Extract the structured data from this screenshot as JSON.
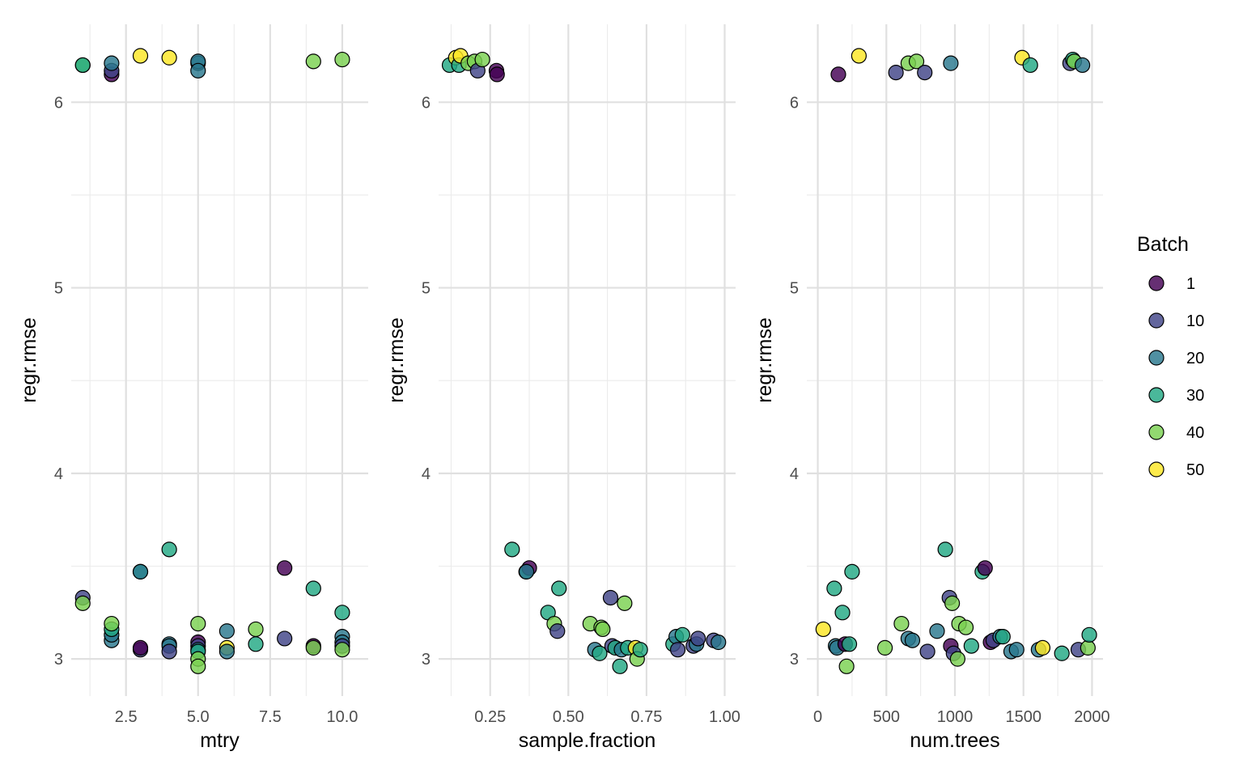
{
  "legend": {
    "title": "Batch",
    "entries": [
      {
        "label": "1",
        "color": "#440154"
      },
      {
        "label": "10",
        "color": "#414487"
      },
      {
        "label": "20",
        "color": "#2A788E"
      },
      {
        "label": "30",
        "color": "#22A884"
      },
      {
        "label": "40",
        "color": "#7AD151"
      },
      {
        "label": "50",
        "color": "#FDE725"
      }
    ]
  },
  "chart_data": [
    {
      "type": "scatter",
      "xlabel": "mtry",
      "ylabel": "regr.rmse",
      "xlim": [
        0.6,
        10.9
      ],
      "ylim": [
        2.8,
        6.42
      ],
      "xticks": [
        2.5,
        5.0,
        7.5,
        10.0
      ],
      "xtick_labels": [
        "2.5",
        "5.0",
        "7.5",
        "10.0"
      ],
      "yticks": [
        3,
        4,
        5,
        6
      ],
      "ytick_labels": [
        "3",
        "4",
        "5",
        "6"
      ],
      "grid": true,
      "points": [
        {
          "x": 1,
          "y": 6.2,
          "batch": 40
        },
        {
          "x": 1,
          "y": 6.2,
          "batch": 30
        },
        {
          "x": 2,
          "y": 6.15,
          "batch": 1
        },
        {
          "x": 2,
          "y": 6.17,
          "batch": 10
        },
        {
          "x": 2,
          "y": 6.21,
          "batch": 20
        },
        {
          "x": 3,
          "y": 6.25,
          "batch": 50
        },
        {
          "x": 4,
          "y": 6.24,
          "batch": 50
        },
        {
          "x": 5,
          "y": 6.21,
          "batch": 20
        },
        {
          "x": 5,
          "y": 6.22,
          "batch": 20
        },
        {
          "x": 5,
          "y": 6.17,
          "batch": 20
        },
        {
          "x": 9,
          "y": 6.22,
          "batch": 40
        },
        {
          "x": 10,
          "y": 6.23,
          "batch": 40
        },
        {
          "x": 1,
          "y": 3.33,
          "batch": 10
        },
        {
          "x": 1,
          "y": 3.3,
          "batch": 40
        },
        {
          "x": 2,
          "y": 3.1,
          "batch": 20
        },
        {
          "x": 2,
          "y": 3.13,
          "batch": 20
        },
        {
          "x": 2,
          "y": 3.16,
          "batch": 30
        },
        {
          "x": 2,
          "y": 3.19,
          "batch": 40
        },
        {
          "x": 3,
          "y": 3.47,
          "batch": 30
        },
        {
          "x": 3,
          "y": 3.47,
          "batch": 20
        },
        {
          "x": 3,
          "y": 3.05,
          "batch": 10
        },
        {
          "x": 3,
          "y": 3.06,
          "batch": 1
        },
        {
          "x": 4,
          "y": 3.59,
          "batch": 30
        },
        {
          "x": 4,
          "y": 3.08,
          "batch": 20
        },
        {
          "x": 4,
          "y": 3.07,
          "batch": 20
        },
        {
          "x": 4,
          "y": 3.04,
          "batch": 10
        },
        {
          "x": 5,
          "y": 3.19,
          "batch": 40
        },
        {
          "x": 5,
          "y": 3.09,
          "batch": 1
        },
        {
          "x": 5,
          "y": 3.07,
          "batch": 10
        },
        {
          "x": 5,
          "y": 3.05,
          "batch": 20
        },
        {
          "x": 5,
          "y": 3.04,
          "batch": 30
        },
        {
          "x": 5,
          "y": 3.0,
          "batch": 40
        },
        {
          "x": 5,
          "y": 2.96,
          "batch": 40
        },
        {
          "x": 6,
          "y": 3.15,
          "batch": 20
        },
        {
          "x": 6,
          "y": 3.06,
          "batch": 50
        },
        {
          "x": 6,
          "y": 3.04,
          "batch": 20
        },
        {
          "x": 7,
          "y": 3.16,
          "batch": 40
        },
        {
          "x": 7,
          "y": 3.08,
          "batch": 30
        },
        {
          "x": 8,
          "y": 3.49,
          "batch": 1
        },
        {
          "x": 8,
          "y": 3.11,
          "batch": 10
        },
        {
          "x": 9,
          "y": 3.38,
          "batch": 30
        },
        {
          "x": 9,
          "y": 3.07,
          "batch": 1
        },
        {
          "x": 9,
          "y": 3.06,
          "batch": 40
        },
        {
          "x": 10,
          "y": 3.25,
          "batch": 30
        },
        {
          "x": 10,
          "y": 3.12,
          "batch": 20
        },
        {
          "x": 10,
          "y": 3.09,
          "batch": 20
        },
        {
          "x": 10,
          "y": 3.07,
          "batch": 10
        },
        {
          "x": 10,
          "y": 3.05,
          "batch": 40
        }
      ]
    },
    {
      "type": "scatter",
      "xlabel": "sample.fraction",
      "ylabel": "regr.rmse",
      "xlim": [
        0.085,
        1.035
      ],
      "ylim": [
        2.8,
        6.42
      ],
      "xticks": [
        0.25,
        0.5,
        0.75,
        1.0
      ],
      "xtick_labels": [
        "0.25",
        "0.50",
        "0.75",
        "1.00"
      ],
      "yticks": [
        3,
        4,
        5,
        6
      ],
      "ytick_labels": [
        "3",
        "4",
        "5",
        "6"
      ],
      "grid": true,
      "points": [
        {
          "x": 0.12,
          "y": 6.2,
          "batch": 30
        },
        {
          "x": 0.14,
          "y": 6.24,
          "batch": 50
        },
        {
          "x": 0.15,
          "y": 6.2,
          "batch": 30
        },
        {
          "x": 0.155,
          "y": 6.25,
          "batch": 50
        },
        {
          "x": 0.18,
          "y": 6.21,
          "batch": 40
        },
        {
          "x": 0.2,
          "y": 6.22,
          "batch": 40
        },
        {
          "x": 0.21,
          "y": 6.17,
          "batch": 10
        },
        {
          "x": 0.225,
          "y": 6.23,
          "batch": 40
        },
        {
          "x": 0.27,
          "y": 6.17,
          "batch": 1
        },
        {
          "x": 0.272,
          "y": 6.15,
          "batch": 1
        },
        {
          "x": 0.32,
          "y": 3.59,
          "batch": 30
        },
        {
          "x": 0.365,
          "y": 3.47,
          "batch": 30
        },
        {
          "x": 0.375,
          "y": 3.49,
          "batch": 1
        },
        {
          "x": 0.366,
          "y": 3.47,
          "batch": 20
        },
        {
          "x": 0.435,
          "y": 3.25,
          "batch": 30
        },
        {
          "x": 0.455,
          "y": 3.19,
          "batch": 40
        },
        {
          "x": 0.465,
          "y": 3.15,
          "batch": 10
        },
        {
          "x": 0.47,
          "y": 3.38,
          "batch": 30
        },
        {
          "x": 0.57,
          "y": 3.19,
          "batch": 40
        },
        {
          "x": 0.585,
          "y": 3.05,
          "batch": 20
        },
        {
          "x": 0.6,
          "y": 3.03,
          "batch": 30
        },
        {
          "x": 0.605,
          "y": 3.17,
          "batch": 40
        },
        {
          "x": 0.61,
          "y": 3.16,
          "batch": 40
        },
        {
          "x": 0.635,
          "y": 3.33,
          "batch": 10
        },
        {
          "x": 0.64,
          "y": 3.07,
          "batch": 10
        },
        {
          "x": 0.65,
          "y": 3.06,
          "batch": 30
        },
        {
          "x": 0.665,
          "y": 2.96,
          "batch": 30
        },
        {
          "x": 0.67,
          "y": 3.05,
          "batch": 20
        },
        {
          "x": 0.68,
          "y": 3.3,
          "batch": 40
        },
        {
          "x": 0.69,
          "y": 3.06,
          "batch": 30
        },
        {
          "x": 0.715,
          "y": 3.06,
          "batch": 50
        },
        {
          "x": 0.72,
          "y": 3.0,
          "batch": 40
        },
        {
          "x": 0.73,
          "y": 3.05,
          "batch": 30
        },
        {
          "x": 0.835,
          "y": 3.08,
          "batch": 30
        },
        {
          "x": 0.845,
          "y": 3.12,
          "batch": 20
        },
        {
          "x": 0.85,
          "y": 3.05,
          "batch": 10
        },
        {
          "x": 0.865,
          "y": 3.13,
          "batch": 30
        },
        {
          "x": 0.9,
          "y": 3.07,
          "batch": 10
        },
        {
          "x": 0.91,
          "y": 3.08,
          "batch": 20
        },
        {
          "x": 0.915,
          "y": 3.11,
          "batch": 10
        },
        {
          "x": 0.965,
          "y": 3.1,
          "batch": 10
        },
        {
          "x": 0.98,
          "y": 3.09,
          "batch": 20
        }
      ]
    },
    {
      "type": "scatter",
      "xlabel": "num.trees",
      "ylabel": "regr.rmse",
      "xlim": [
        -80,
        2080
      ],
      "ylim": [
        2.8,
        6.42
      ],
      "xticks": [
        0,
        500,
        1000,
        1500,
        2000
      ],
      "xtick_labels": [
        "0",
        "500",
        "1000",
        "1500",
        "2000"
      ],
      "yticks": [
        3,
        4,
        5,
        6
      ],
      "ytick_labels": [
        "3",
        "4",
        "5",
        "6"
      ],
      "grid": true,
      "points": [
        {
          "x": 150,
          "y": 6.15,
          "batch": 1
        },
        {
          "x": 300,
          "y": 6.25,
          "batch": 50
        },
        {
          "x": 570,
          "y": 6.16,
          "batch": 10
        },
        {
          "x": 660,
          "y": 6.21,
          "batch": 40
        },
        {
          "x": 720,
          "y": 6.22,
          "batch": 40
        },
        {
          "x": 780,
          "y": 6.16,
          "batch": 10
        },
        {
          "x": 970,
          "y": 6.21,
          "batch": 20
        },
        {
          "x": 1490,
          "y": 6.24,
          "batch": 50
        },
        {
          "x": 1550,
          "y": 6.2,
          "batch": 30
        },
        {
          "x": 1840,
          "y": 6.21,
          "batch": 10
        },
        {
          "x": 1860,
          "y": 6.23,
          "batch": 30
        },
        {
          "x": 1870,
          "y": 6.22,
          "batch": 40
        },
        {
          "x": 1930,
          "y": 6.2,
          "batch": 20
        },
        {
          "x": 40,
          "y": 3.16,
          "batch": 50
        },
        {
          "x": 120,
          "y": 3.38,
          "batch": 30
        },
        {
          "x": 130,
          "y": 3.07,
          "batch": 20
        },
        {
          "x": 140,
          "y": 3.06,
          "batch": 20
        },
        {
          "x": 180,
          "y": 3.25,
          "batch": 30
        },
        {
          "x": 200,
          "y": 3.08,
          "batch": 1
        },
        {
          "x": 210,
          "y": 2.96,
          "batch": 40
        },
        {
          "x": 230,
          "y": 3.08,
          "batch": 30
        },
        {
          "x": 250,
          "y": 3.47,
          "batch": 30
        },
        {
          "x": 490,
          "y": 3.06,
          "batch": 40
        },
        {
          "x": 610,
          "y": 3.19,
          "batch": 40
        },
        {
          "x": 660,
          "y": 3.11,
          "batch": 20
        },
        {
          "x": 690,
          "y": 3.1,
          "batch": 20
        },
        {
          "x": 800,
          "y": 3.04,
          "batch": 10
        },
        {
          "x": 870,
          "y": 3.15,
          "batch": 20
        },
        {
          "x": 930,
          "y": 3.59,
          "batch": 30
        },
        {
          "x": 960,
          "y": 3.33,
          "batch": 10
        },
        {
          "x": 980,
          "y": 3.3,
          "batch": 40
        },
        {
          "x": 970,
          "y": 3.07,
          "batch": 1
        },
        {
          "x": 990,
          "y": 3.03,
          "batch": 10
        },
        {
          "x": 1020,
          "y": 3.0,
          "batch": 40
        },
        {
          "x": 1030,
          "y": 3.19,
          "batch": 40
        },
        {
          "x": 1080,
          "y": 3.17,
          "batch": 40
        },
        {
          "x": 1120,
          "y": 3.07,
          "batch": 30
        },
        {
          "x": 1200,
          "y": 3.47,
          "batch": 30
        },
        {
          "x": 1220,
          "y": 3.49,
          "batch": 1
        },
        {
          "x": 1260,
          "y": 3.09,
          "batch": 1
        },
        {
          "x": 1280,
          "y": 3.1,
          "batch": 10
        },
        {
          "x": 1330,
          "y": 3.12,
          "batch": 20
        },
        {
          "x": 1350,
          "y": 3.12,
          "batch": 30
        },
        {
          "x": 1410,
          "y": 3.04,
          "batch": 20
        },
        {
          "x": 1450,
          "y": 3.05,
          "batch": 20
        },
        {
          "x": 1610,
          "y": 3.05,
          "batch": 20
        },
        {
          "x": 1640,
          "y": 3.06,
          "batch": 50
        },
        {
          "x": 1780,
          "y": 3.03,
          "batch": 30
        },
        {
          "x": 1900,
          "y": 3.05,
          "batch": 10
        },
        {
          "x": 1970,
          "y": 3.06,
          "batch": 40
        },
        {
          "x": 1980,
          "y": 3.13,
          "batch": 30
        }
      ]
    }
  ]
}
